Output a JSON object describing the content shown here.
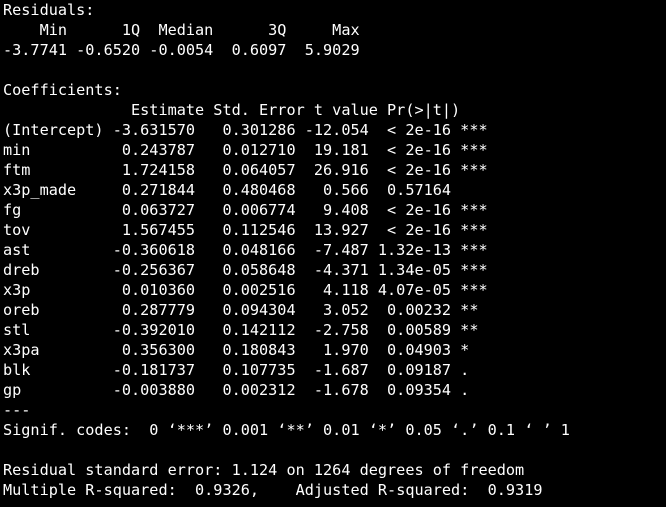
{
  "colors": {
    "background": "#000000",
    "text": "#ffffff"
  },
  "residuals": {
    "title": "Residuals:",
    "header": "    Min      1Q  Median      3Q     Max ",
    "values": "-3.7741 -0.6520 -0.0054  0.6097  5.9029 "
  },
  "coefficients": {
    "title": "Coefficients:",
    "header": "              Estimate Std. Error t value Pr(>|t|)    ",
    "rows": [
      "(Intercept) -3.631570   0.301286 -12.054  < 2e-16 ***",
      "min          0.243787   0.012710  19.181  < 2e-16 ***",
      "ftm          1.724158   0.064057  26.916  < 2e-16 ***",
      "x3p_made     0.271844   0.480468   0.566  0.57164    ",
      "fg           0.063727   0.006774   9.408  < 2e-16 ***",
      "tov          1.567455   0.112546  13.927  < 2e-16 ***",
      "ast         -0.360618   0.048166  -7.487 1.32e-13 ***",
      "dreb        -0.256367   0.058648  -4.371 1.34e-05 ***",
      "x3p          0.010360   0.002516   4.118 4.07e-05 ***",
      "oreb         0.287779   0.094304   3.052  0.00232 ** ",
      "stl         -0.392010   0.142112  -2.758  0.00589 ** ",
      "x3pa         0.356300   0.180843   1.970  0.04903 *  ",
      "blk         -0.181737   0.107735  -1.687  0.09187 .  ",
      "gp          -0.003880   0.002312  -1.678  0.09354 .  "
    ],
    "separator": "---",
    "signif_codes": "Signif. codes:  0 ‘***’ 0.001 ‘**’ 0.01 ‘*’ 0.05 ‘.’ 0.1 ‘ ’ 1"
  },
  "fit": {
    "residual_se": "Residual standard error: 1.124 on 1264 degrees of freedom",
    "r_squared": "Multiple R-squared:  0.9326,\tAdjusted R-squared:  0.9319 "
  }
}
